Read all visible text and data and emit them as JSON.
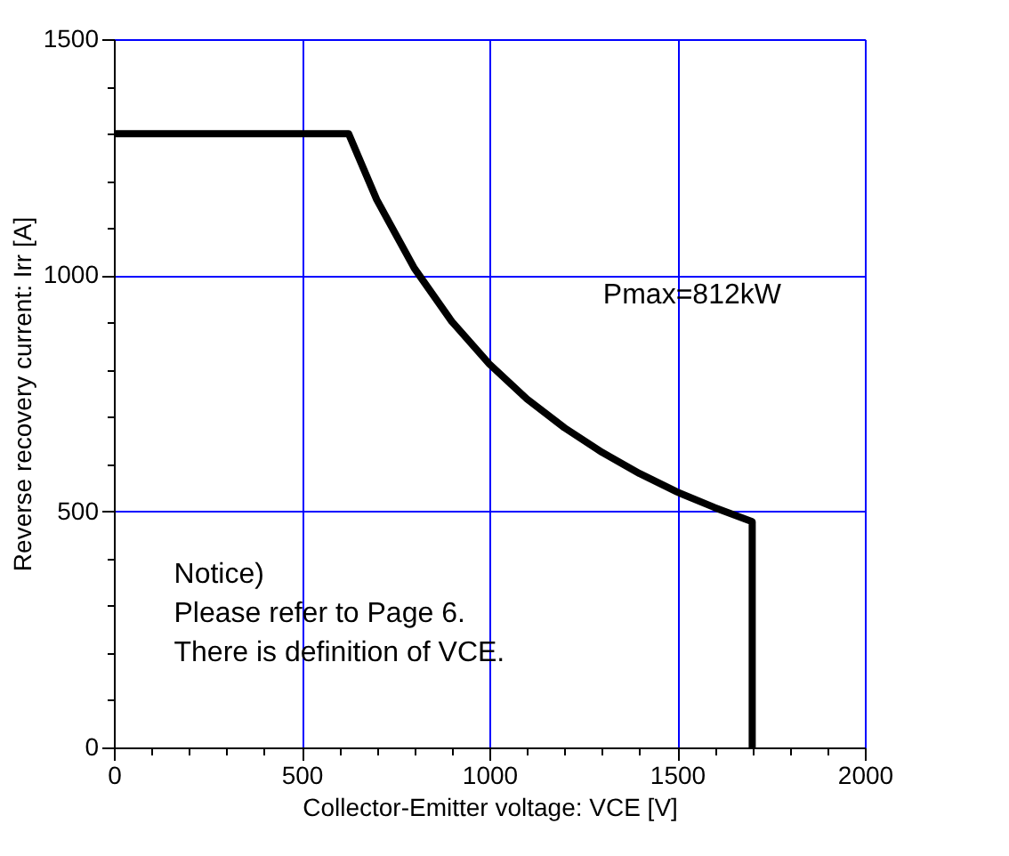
{
  "chart_data": {
    "type": "line",
    "xlabel": "Collector-Emitter voltage: VCE [V]",
    "ylabel": "Reverse recovery current: Irr [A]",
    "annotations": [
      "Pmax=812kW",
      "Notice)\nPlease refer to Page 6.\nThere is definition of VCE."
    ],
    "x": [
      0,
      625,
      700,
      800,
      900,
      1000,
      1100,
      1200,
      1300,
      1400,
      1500,
      1600,
      1700,
      1700
    ],
    "series": [
      {
        "color": "#000000",
        "values": [
          1300,
          1300,
          1160,
          1015,
          902,
          812,
          738,
          677,
          625,
          580,
          541,
          508,
          478,
          0
        ]
      }
    ],
    "xlim": [
      0,
      2000
    ],
    "ylim": [
      0,
      1500
    ],
    "xticks": [
      0,
      {
        "value": 100,
        "label": null
      },
      {
        "value": 200,
        "label": null
      },
      {
        "value": 300,
        "label": null
      },
      {
        "value": 400,
        "label": null
      },
      500,
      {
        "value": 600,
        "label": null
      },
      {
        "value": 700,
        "label": null
      },
      {
        "value": 800,
        "label": null
      },
      {
        "value": 900,
        "label": null
      },
      1000,
      {
        "value": 1100,
        "label": null
      },
      {
        "value": 1200,
        "label": null
      },
      {
        "value": 1300,
        "label": null
      },
      {
        "value": 1400,
        "label": null
      },
      1500,
      {
        "value": 1600,
        "label": null
      },
      {
        "value": 1700,
        "label": null
      },
      {
        "value": 1800,
        "label": null
      },
      {
        "value": 1900,
        "label": null
      },
      2000
    ],
    "yticks": [
      0,
      {
        "value": 100,
        "label": null
      },
      {
        "value": 200,
        "label": null
      },
      {
        "value": 300,
        "label": null
      },
      {
        "value": 400,
        "label": null
      },
      500,
      {
        "value": 600,
        "label": null
      },
      {
        "value": 700,
        "label": null
      },
      {
        "value": 800,
        "label": null
      },
      {
        "value": 900,
        "label": null
      },
      1000,
      {
        "value": 1100,
        "label": null
      },
      {
        "value": 1200,
        "label": null
      },
      {
        "value": 1300,
        "label": null
      },
      {
        "value": 1400,
        "label": null
      },
      1500
    ],
    "grid": true,
    "line_style": "solid",
    "marker": "none"
  }
}
